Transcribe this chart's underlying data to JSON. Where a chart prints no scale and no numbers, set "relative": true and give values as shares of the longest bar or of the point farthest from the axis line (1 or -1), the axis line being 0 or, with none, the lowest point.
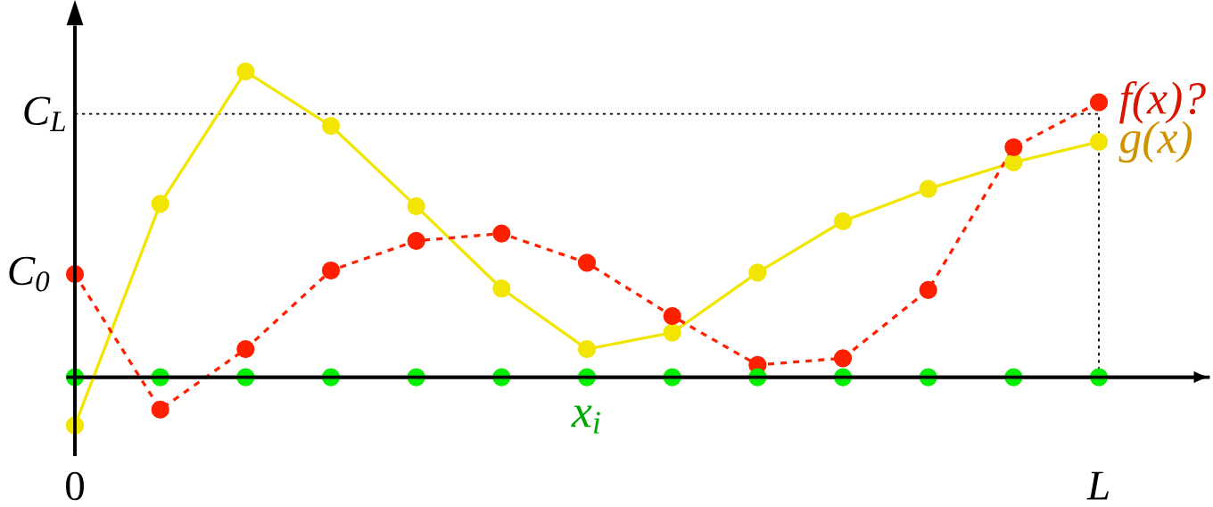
{
  "chart_data": {
    "type": "line",
    "relative": true,
    "marker": "circle",
    "categories": [
      "0",
      null,
      null,
      null,
      null,
      null,
      null,
      null,
      null,
      null,
      null,
      null,
      "*L*"
    ],
    "series": [
      {
        "name": "g(x)",
        "color": "#f2e600",
        "line_style": "solid",
        "values": [
          -0.158,
          0.567,
          1.0,
          0.822,
          0.559,
          0.29,
          0.092,
          0.146,
          0.342,
          0.51,
          0.616,
          0.703,
          0.77
        ]
      },
      {
        "name": "f(x)?",
        "color": "#ff2000",
        "line_style": "dashed",
        "values": [
          0.337,
          -0.106,
          0.092,
          0.349,
          0.446,
          0.47,
          0.374,
          0.2,
          0.04,
          0.062,
          0.285,
          0.752,
          0.899
        ]
      },
      {
        "name": "x$_{i}$",
        "type": "scatter",
        "color": "#00ee00",
        "values": [
          0,
          0,
          0,
          0,
          0,
          0,
          0,
          0,
          0,
          0,
          0,
          0,
          0
        ]
      }
    ],
    "ref_lines": [
      {
        "axis": "y",
        "value": 0.861,
        "label": "C$_{L}$",
        "color": "#000000",
        "line_style": "dotted"
      },
      {
        "axis": "x",
        "value": "*L*",
        "color": "#000000",
        "line_style": "dotted"
      }
    ],
    "annotations": [
      {
        "text": "C$_{0}$",
        "x": "0",
        "y": 0.337
      }
    ]
  }
}
